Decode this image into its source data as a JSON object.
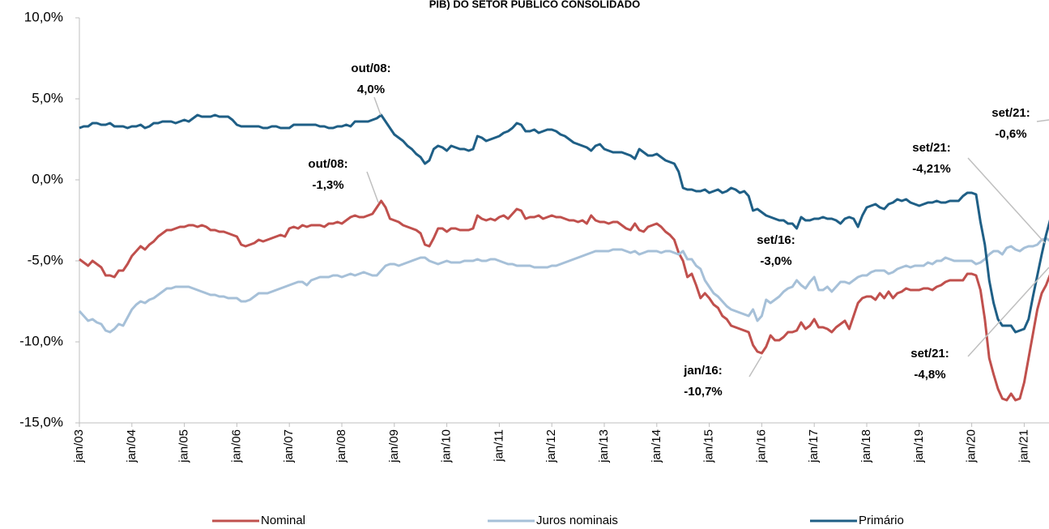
{
  "chart_data": {
    "type": "line",
    "title": "PIB) DO SETOR PÚBLICO CONSOLIDADO",
    "categories": [
      "jan/03",
      null,
      null,
      null,
      null,
      null,
      null,
      null,
      null,
      null,
      null,
      null,
      "jan/04",
      null,
      null,
      null,
      null,
      null,
      null,
      null,
      null,
      null,
      null,
      null,
      "jan/05",
      null,
      null,
      null,
      null,
      null,
      null,
      null,
      null,
      null,
      null,
      null,
      "jan/06",
      null,
      null,
      null,
      null,
      null,
      null,
      null,
      null,
      null,
      null,
      null,
      "jan/07",
      null,
      null,
      null,
      null,
      null,
      null,
      null,
      null,
      null,
      null,
      null,
      "jan/08",
      null,
      null,
      null,
      null,
      null,
      null,
      null,
      null,
      null,
      null,
      null,
      "jan/09",
      null,
      null,
      null,
      null,
      null,
      null,
      null,
      null,
      null,
      null,
      null,
      "jan/10",
      null,
      null,
      null,
      null,
      null,
      null,
      null,
      null,
      null,
      null,
      null,
      "jan/11",
      null,
      null,
      null,
      null,
      null,
      null,
      null,
      null,
      null,
      null,
      null,
      "jan/12",
      null,
      null,
      null,
      null,
      null,
      null,
      null,
      null,
      null,
      null,
      null,
      "jan/13",
      null,
      null,
      null,
      null,
      null,
      null,
      null,
      null,
      null,
      null,
      null,
      "jan/14",
      null,
      null,
      null,
      null,
      null,
      null,
      null,
      null,
      null,
      null,
      null,
      "jan/15",
      null,
      null,
      null,
      null,
      null,
      null,
      null,
      null,
      null,
      null,
      null,
      "jan/16",
      null,
      null,
      null,
      null,
      null,
      null,
      null,
      null,
      null,
      null,
      null,
      "jan/17",
      null,
      null,
      null,
      null,
      null,
      null,
      null,
      null,
      null,
      null,
      null,
      "jan/18",
      null,
      null,
      null,
      null,
      null,
      null,
      null,
      null,
      null,
      null,
      null,
      "jan/19",
      null,
      null,
      null,
      null,
      null,
      null,
      null,
      null,
      null,
      null,
      null,
      "jan/20",
      null,
      null,
      null,
      null,
      null,
      null,
      null,
      null,
      null,
      null,
      null,
      "jan/21",
      null,
      null,
      null,
      null,
      null,
      null,
      null,
      null
    ],
    "series": [
      {
        "name": "Nominal",
        "color": "#c0504d",
        "values": [
          -4.9,
          -5.1,
          -5.3,
          -5.0,
          -5.2,
          -5.4,
          -5.9,
          -5.9,
          -6.0,
          -5.6,
          -5.6,
          -5.2,
          -4.7,
          -4.4,
          -4.1,
          -4.3,
          -4.0,
          -3.8,
          -3.5,
          -3.3,
          -3.1,
          -3.1,
          -3.0,
          -2.9,
          -2.9,
          -2.8,
          -2.8,
          -2.9,
          -2.8,
          -2.9,
          -3.1,
          -3.1,
          -3.2,
          -3.2,
          -3.3,
          -3.4,
          -3.5,
          -4.0,
          -4.1,
          -4.0,
          -3.9,
          -3.7,
          -3.8,
          -3.7,
          -3.6,
          -3.5,
          -3.4,
          -3.5,
          -3.0,
          -2.9,
          -3.0,
          -2.8,
          -2.9,
          -2.8,
          -2.8,
          -2.8,
          -2.9,
          -2.7,
          -2.7,
          -2.6,
          -2.7,
          -2.5,
          -2.3,
          -2.2,
          -2.3,
          -2.3,
          -2.2,
          -2.1,
          -1.7,
          -1.3,
          -1.7,
          -2.4,
          -2.5,
          -2.6,
          -2.8,
          -2.9,
          -3.0,
          -3.1,
          -3.3,
          -4.0,
          -4.1,
          -3.6,
          -3.0,
          -3.0,
          -3.2,
          -3.0,
          -3.0,
          -3.1,
          -3.1,
          -3.1,
          -3.0,
          -2.2,
          -2.4,
          -2.5,
          -2.4,
          -2.5,
          -2.3,
          -2.2,
          -2.4,
          -2.1,
          -1.8,
          -1.9,
          -2.4,
          -2.3,
          -2.3,
          -2.2,
          -2.4,
          -2.3,
          -2.2,
          -2.3,
          -2.3,
          -2.4,
          -2.5,
          -2.5,
          -2.6,
          -2.5,
          -2.7,
          -2.2,
          -2.5,
          -2.6,
          -2.6,
          -2.7,
          -2.6,
          -2.6,
          -2.8,
          -3.0,
          -3.1,
          -2.7,
          -3.1,
          -3.2,
          -2.9,
          -2.8,
          -2.7,
          -2.9,
          -3.2,
          -3.4,
          -3.7,
          -4.5,
          -5.0,
          -6.0,
          -5.8,
          -6.5,
          -7.3,
          -7.0,
          -7.3,
          -7.7,
          -7.9,
          -8.4,
          -8.6,
          -9.0,
          -9.1,
          -9.2,
          -9.3,
          -9.4,
          -10.2,
          -10.6,
          -10.7,
          -10.3,
          -9.6,
          -9.9,
          -9.9,
          -9.7,
          -9.4,
          -9.4,
          -9.3,
          -8.8,
          -9.2,
          -9.0,
          -8.6,
          -9.1,
          -9.1,
          -9.2,
          -9.4,
          -9.1,
          -8.9,
          -8.7,
          -9.2,
          -8.4,
          -7.6,
          -7.3,
          -7.2,
          -7.2,
          -7.4,
          -7.0,
          -7.3,
          -6.9,
          -7.3,
          -7.0,
          -6.9,
          -6.7,
          -6.8,
          -6.8,
          -6.8,
          -6.7,
          -6.7,
          -6.8,
          -6.6,
          -6.5,
          -6.3,
          -6.2,
          -6.2,
          -6.2,
          -6.2,
          -5.8,
          -5.8,
          -5.9,
          -6.8,
          -8.6,
          -11.0,
          -12.0,
          -12.9,
          -13.5,
          -13.6,
          -13.2,
          -13.6,
          -13.5,
          -12.5,
          -11.0,
          -9.5,
          -8.0,
          -7.0,
          -6.5,
          -5.8,
          -5.3,
          -4.8
        ]
      },
      {
        "name": "Juros nominais",
        "color": "#a6c0d8",
        "values": [
          -8.1,
          -8.4,
          -8.7,
          -8.6,
          -8.8,
          -8.9,
          -9.3,
          -9.4,
          -9.2,
          -8.9,
          -9.0,
          -8.5,
          -8.0,
          -7.7,
          -7.5,
          -7.6,
          -7.4,
          -7.3,
          -7.1,
          -6.9,
          -6.7,
          -6.7,
          -6.6,
          -6.6,
          -6.6,
          -6.6,
          -6.7,
          -6.8,
          -6.9,
          -7.0,
          -7.1,
          -7.1,
          -7.2,
          -7.2,
          -7.3,
          -7.3,
          -7.3,
          -7.5,
          -7.5,
          -7.4,
          -7.2,
          -7.0,
          -7.0,
          -7.0,
          -6.9,
          -6.8,
          -6.7,
          -6.6,
          -6.5,
          -6.4,
          -6.3,
          -6.3,
          -6.5,
          -6.2,
          -6.1,
          -6.0,
          -6.0,
          -6.0,
          -5.9,
          -5.9,
          -6.0,
          -5.9,
          -5.8,
          -5.9,
          -5.8,
          -5.7,
          -5.8,
          -5.9,
          -5.9,
          -5.6,
          -5.3,
          -5.2,
          -5.2,
          -5.3,
          -5.2,
          -5.1,
          -5.0,
          -4.9,
          -4.8,
          -4.8,
          -5.0,
          -5.1,
          -5.2,
          -5.1,
          -5.0,
          -5.1,
          -5.1,
          -5.1,
          -5.0,
          -5.0,
          -5.0,
          -4.9,
          -5.0,
          -5.0,
          -4.9,
          -4.9,
          -5.0,
          -5.1,
          -5.2,
          -5.2,
          -5.3,
          -5.3,
          -5.3,
          -5.3,
          -5.4,
          -5.4,
          -5.4,
          -5.4,
          -5.3,
          -5.3,
          -5.2,
          -5.1,
          -5.0,
          -4.9,
          -4.8,
          -4.7,
          -4.6,
          -4.5,
          -4.4,
          -4.4,
          -4.4,
          -4.4,
          -4.3,
          -4.3,
          -4.3,
          -4.4,
          -4.5,
          -4.4,
          -4.6,
          -4.5,
          -4.4,
          -4.4,
          -4.4,
          -4.5,
          -4.4,
          -4.4,
          -4.5,
          -4.6,
          -4.4,
          -4.9,
          -4.9,
          -5.3,
          -5.5,
          -6.2,
          -6.6,
          -7.0,
          -7.2,
          -7.5,
          -7.8,
          -8.0,
          -8.1,
          -8.2,
          -8.3,
          -8.4,
          -8.0,
          -8.7,
          -8.4,
          -7.4,
          -7.6,
          -7.4,
          -7.2,
          -6.9,
          -6.7,
          -6.6,
          -6.2,
          -6.5,
          -6.7,
          -6.3,
          -6.0,
          -6.8,
          -6.8,
          -6.6,
          -6.9,
          -6.6,
          -6.3,
          -6.3,
          -6.4,
          -6.2,
          -6.0,
          -5.9,
          -5.9,
          -5.7,
          -5.6,
          -5.6,
          -5.6,
          -5.8,
          -5.7,
          -5.5,
          -5.4,
          -5.3,
          -5.4,
          -5.3,
          -5.3,
          -5.3,
          -5.1,
          -5.2,
          -5.0,
          -5.0,
          -4.8,
          -4.9,
          -5.0,
          -5.0,
          -5.0,
          -5.0,
          -5.0,
          -5.2,
          -5.1,
          -4.9,
          -4.6,
          -4.4,
          -4.4,
          -4.6,
          -4.2,
          -4.1,
          -4.3,
          -4.4,
          -4.2,
          -4.1,
          -4.1,
          -4.0,
          -3.7,
          -3.6,
          -3.8,
          -3.7,
          -4.21
        ]
      },
      {
        "name": "Primário",
        "color": "#1f5f86",
        "values": [
          3.2,
          3.3,
          3.3,
          3.5,
          3.5,
          3.4,
          3.4,
          3.5,
          3.3,
          3.3,
          3.3,
          3.2,
          3.3,
          3.3,
          3.4,
          3.2,
          3.3,
          3.5,
          3.5,
          3.6,
          3.6,
          3.6,
          3.5,
          3.6,
          3.7,
          3.6,
          3.8,
          4.0,
          3.9,
          3.9,
          3.9,
          4.0,
          3.9,
          3.9,
          3.9,
          3.7,
          3.4,
          3.3,
          3.3,
          3.3,
          3.3,
          3.3,
          3.2,
          3.2,
          3.3,
          3.3,
          3.2,
          3.2,
          3.2,
          3.4,
          3.4,
          3.4,
          3.4,
          3.4,
          3.4,
          3.3,
          3.3,
          3.2,
          3.2,
          3.3,
          3.3,
          3.4,
          3.3,
          3.6,
          3.6,
          3.6,
          3.6,
          3.7,
          3.8,
          4.0,
          3.6,
          3.2,
          2.8,
          2.6,
          2.4,
          2.1,
          1.9,
          1.6,
          1.4,
          1.0,
          1.2,
          1.9,
          2.1,
          2.0,
          1.8,
          2.1,
          2.0,
          1.9,
          1.9,
          1.8,
          1.9,
          2.7,
          2.6,
          2.4,
          2.5,
          2.6,
          2.7,
          2.9,
          3.0,
          3.2,
          3.5,
          3.4,
          3.0,
          3.0,
          3.1,
          2.9,
          3.0,
          3.1,
          3.1,
          3.0,
          2.8,
          2.7,
          2.5,
          2.3,
          2.2,
          2.1,
          2.0,
          1.8,
          2.1,
          2.2,
          1.9,
          1.8,
          1.7,
          1.7,
          1.7,
          1.6,
          1.5,
          1.3,
          1.9,
          1.7,
          1.5,
          1.5,
          1.6,
          1.4,
          1.2,
          1.1,
          1.0,
          0.5,
          -0.5,
          -0.6,
          -0.6,
          -0.7,
          -0.7,
          -0.6,
          -0.8,
          -0.7,
          -0.6,
          -0.8,
          -0.7,
          -0.5,
          -0.6,
          -0.8,
          -0.7,
          -1.0,
          -1.9,
          -1.8,
          -2.0,
          -2.2,
          -2.3,
          -2.4,
          -2.5,
          -2.5,
          -2.7,
          -2.7,
          -3.0,
          -2.3,
          -2.5,
          -2.5,
          -2.4,
          -2.4,
          -2.3,
          -2.4,
          -2.4,
          -2.5,
          -2.7,
          -2.4,
          -2.3,
          -2.4,
          -2.9,
          -2.2,
          -1.7,
          -1.6,
          -1.5,
          -1.7,
          -1.8,
          -1.5,
          -1.4,
          -1.2,
          -1.3,
          -1.2,
          -1.4,
          -1.5,
          -1.6,
          -1.5,
          -1.4,
          -1.4,
          -1.3,
          -1.4,
          -1.4,
          -1.3,
          -1.3,
          -1.3,
          -1.0,
          -0.8,
          -0.8,
          -0.9,
          -2.6,
          -4.0,
          -6.2,
          -7.6,
          -8.6,
          -9.0,
          -9.0,
          -9.0,
          -9.4,
          -9.3,
          -9.2,
          -8.6,
          -7.2,
          -5.9,
          -4.6,
          -3.4,
          -2.4,
          -1.4,
          -0.6
        ]
      }
    ],
    "ylim": [
      -15,
      10
    ],
    "yticks": [
      {
        "value": -15,
        "label": "-15,0%"
      },
      {
        "value": -10,
        "label": "-10,0%"
      },
      {
        "value": -5,
        "label": "-5,0%"
      },
      {
        "value": 0,
        "label": "0,0%"
      },
      {
        "value": 5,
        "label": "5,0%"
      },
      {
        "value": 10,
        "label": "10,0%"
      }
    ],
    "annotations": [
      {
        "text": [
          "out/08:",
          "4,0%"
        ]
      },
      {
        "text": [
          "out/08:",
          "-1,3%"
        ]
      },
      {
        "text": [
          "set/16:",
          "-3,0%"
        ]
      },
      {
        "text": [
          "jan/16:",
          "-10,7%"
        ]
      },
      {
        "text": [
          "set/21:",
          "-4,21%"
        ]
      },
      {
        "text": [
          "set/21:",
          "-0,6%"
        ]
      },
      {
        "text": [
          "set/21:",
          "-4,8%"
        ]
      }
    ],
    "legend": "bottom"
  }
}
